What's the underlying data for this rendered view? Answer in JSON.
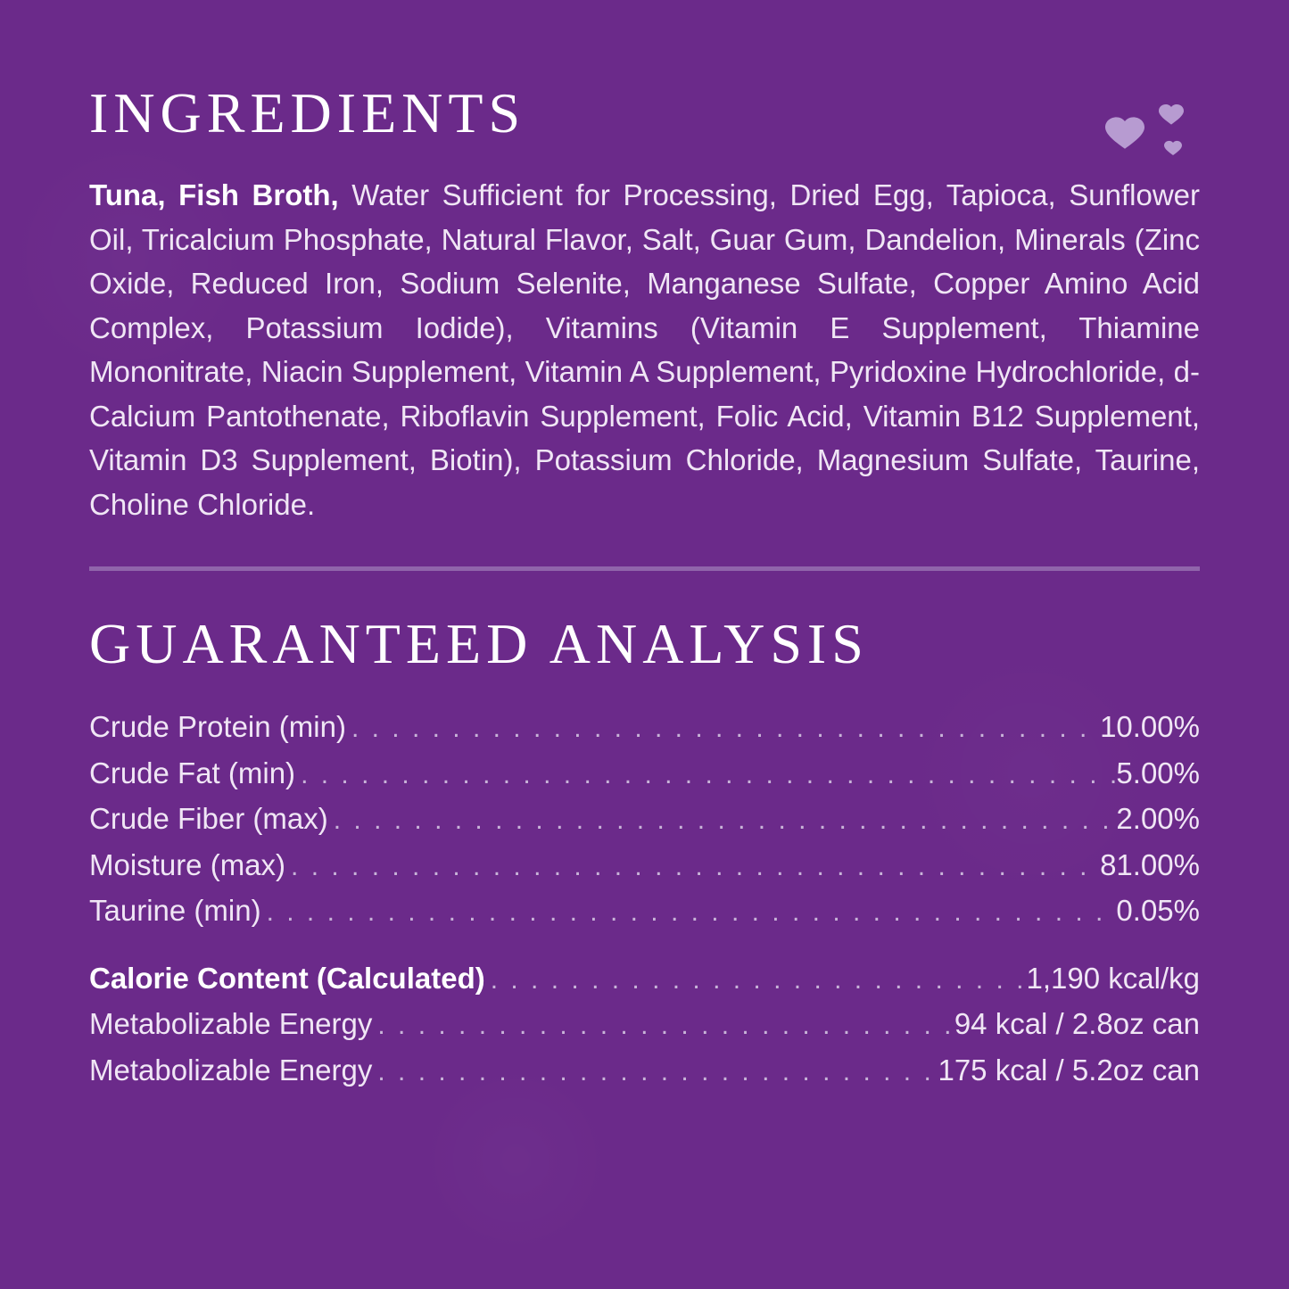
{
  "colors": {
    "background": "#6b2a8a",
    "text": "#f0e6f5",
    "bold_text": "#ffffff",
    "divider": "#a98ec1",
    "dots": "#c8b4d8",
    "heart": "#b79bd1"
  },
  "sections": {
    "ingredients": {
      "heading": "INGREDIENTS",
      "bold_lead": "Tuna, Fish Broth, ",
      "body": "Water Sufficient for Processing, Dried Egg, Tapioca, Sunflower Oil, Tricalcium Phosphate, Natural Flavor, Salt, Guar Gum, Dandelion, Minerals (Zinc Oxide, Reduced Iron, Sodium Selenite, Manganese Sulfate, Copper Amino Acid Complex, Potassium Iodide), Vitamins (Vitamin E Supplement, Thiamine Mononitrate, Niacin Supplement, Vitamin A Supplement, Pyridoxine Hydrochloride, d-Calcium Pantothenate, Riboflavin Supplement, Folic Acid, Vitamin B12 Supplement, Vitamin D3 Supplement, Biotin), Potassium Chloride, Magnesium Sulfate, Taurine, Choline Chloride."
    },
    "analysis": {
      "heading": "GUARANTEED ANALYSIS",
      "rows": [
        {
          "label": "Crude Protein (min)",
          "value": "10.00%",
          "bold": false
        },
        {
          "label": "Crude Fat (min)",
          "value": "5.00%",
          "bold": false
        },
        {
          "label": "Crude Fiber (max)",
          "value": "2.00%",
          "bold": false
        },
        {
          "label": "Moisture (max)",
          "value": "81.00%",
          "bold": false
        },
        {
          "label": "Taurine (min)",
          "value": "0.05%",
          "bold": false
        }
      ],
      "rows2": [
        {
          "label": "Calorie Content (Calculated)",
          "value": "1,190 kcal/kg",
          "bold": true
        },
        {
          "label": "Metabolizable Energy",
          "value": "94 kcal / 2.8oz can",
          "bold": false
        },
        {
          "label": "Metabolizable Energy",
          "value": "175 kcal / 5.2oz can",
          "bold": false
        }
      ]
    }
  },
  "typography": {
    "heading_fontsize": 64,
    "body_fontsize": 33,
    "heading_font": "handwritten-style",
    "body_font": "sans-serif"
  }
}
